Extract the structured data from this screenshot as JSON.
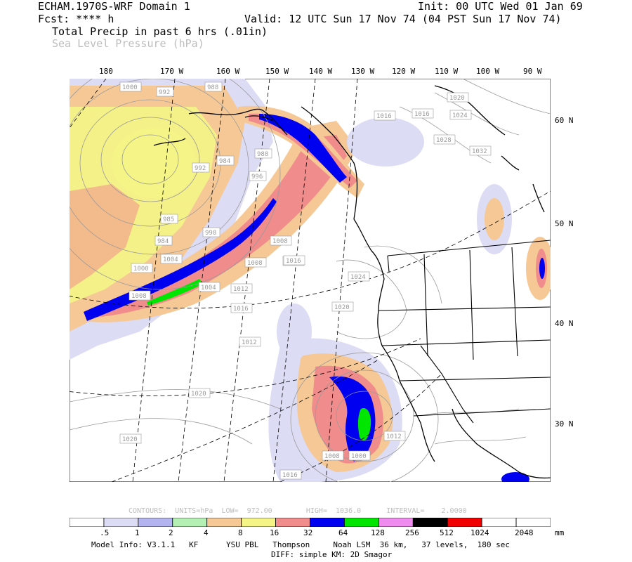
{
  "header": {
    "model": "ECHAM.1970S-WRF Domain 1",
    "init": "Init: 00 UTC Wed 01 Jan 69",
    "fcst": "Fcst: **** h",
    "valid": "Valid: 12 UTC Sun 17 Nov 74 (04 PST Sun 17 Nov 74)",
    "field1": "Total Precip in past 6 hrs (.01in)",
    "field2": "Sea Level Pressure (hPa)"
  },
  "lon_labels": [
    "180",
    "170 W",
    "160 W",
    "150 W",
    "140 W",
    "130 W",
    "120 W",
    "110 W",
    "100 W",
    "90 W"
  ],
  "lat_labels": [
    "60 N",
    "50 N",
    "40 N",
    "30 N"
  ],
  "contour_labels": [
    "1000",
    "992",
    "988",
    "984",
    "992",
    "996",
    "988",
    "985",
    "998",
    "984",
    "996",
    "1000",
    "1004",
    "1008",
    "1008",
    "1004",
    "1012",
    "1016",
    "1016",
    "1008",
    "1016",
    "1020",
    "1024",
    "1028",
    "1032",
    "1012",
    "1016",
    "1020",
    "1024",
    "1020",
    "1020",
    "1012",
    "1012",
    "1008",
    "1016",
    "1000"
  ],
  "contour_info": "CONTOURS:  UNITS=hPa  LOW=  972.00        HIGH=  1036.0      INTERVAL=    2.0000",
  "colorbar": {
    "colors": [
      "#ffffff",
      "#dcdcf5",
      "#b4b4f0",
      "#b4f0b4",
      "#f5c896",
      "#f5f587",
      "#f08c8c",
      "#0000f0",
      "#00e600",
      "#f08cf0",
      "#000000",
      "#f00000",
      "#ffffff",
      "#ffffff"
    ],
    "labels": [
      ".5",
      "1",
      "2",
      "4",
      "8",
      "16",
      "32",
      "64",
      "128",
      "256",
      "512",
      "1024",
      "2048"
    ],
    "units": "mm"
  },
  "footer": {
    "line1": "Model Info: V3.1.1   KF      YSU PBL   Thompson     Noah LSM  36 km,   37 levels,  180 sec",
    "line2": "DIFF: simple KM: 2D Smagor"
  }
}
